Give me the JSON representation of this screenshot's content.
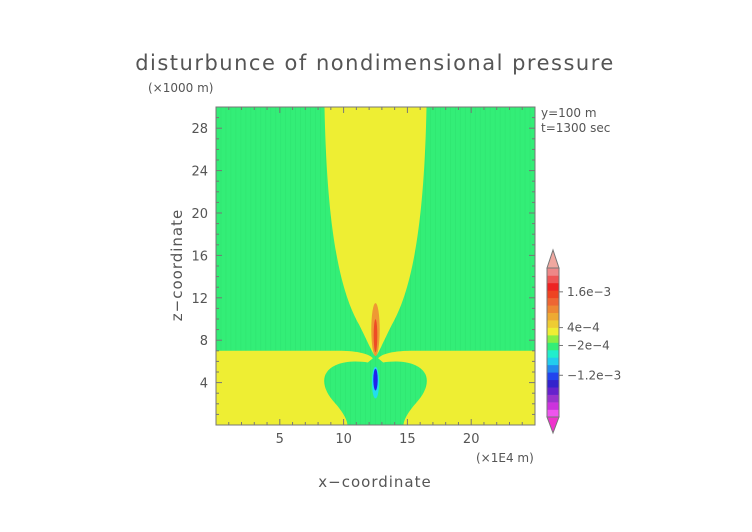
{
  "chart_data": {
    "type": "heatmap",
    "title": "disturbunce of nondimensional pressure",
    "xlabel": "x−coordinate",
    "ylabel": "z−coordinate",
    "x_unit": "(×1E4 m)",
    "y_unit": "(×1000 m)",
    "annotations": [
      "y=100 m",
      "t=1300 sec"
    ],
    "xlim": [
      0,
      25
    ],
    "ylim": [
      0,
      30
    ],
    "x_ticks": [
      5,
      10,
      15,
      20
    ],
    "y_ticks": [
      4,
      8,
      12,
      16,
      20,
      24,
      28
    ],
    "grid": false,
    "colorbar": {
      "position": "right",
      "labels": [
        "1.6e−3",
        "4e−4",
        "−2e−4",
        "−1.2e−3"
      ],
      "label_values": [
        0.0016,
        0.0004,
        -0.0002,
        -0.0012
      ]
    },
    "regions": {
      "background_level": "0 to 2e-4",
      "plume_level": "2e-4 to 4e-4",
      "plume_x_range_at_top": [
        8.5,
        16.5
      ],
      "plume_narrowing_height": 10,
      "low_level_layer_top": 7,
      "positive_core": {
        "x": 12.5,
        "z_range": [
          6.5,
          11.5
        ]
      },
      "negative_core": {
        "x": 12.5,
        "z_range": [
          2.5,
          5.5
        ]
      }
    },
    "colors": {
      "background_field": "#33ee77",
      "plume": "#eeee33",
      "positive_core_outer": "#ee9933",
      "positive_core_inner": "#ee3322",
      "negative_core_outer": "#22ddee",
      "negative_core_inner": "#2222ee"
    }
  }
}
